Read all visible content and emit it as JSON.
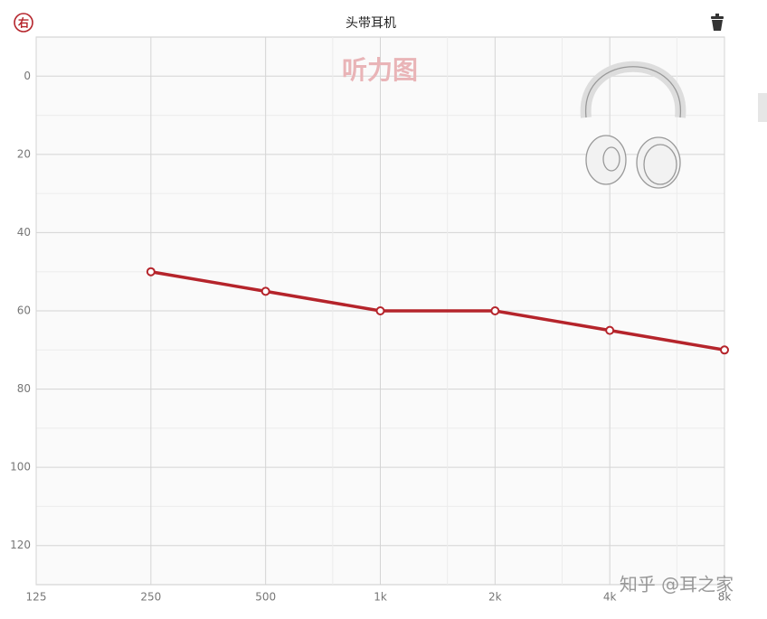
{
  "header": {
    "side_icon": "右",
    "title": "头带耳机"
  },
  "chart_data": {
    "type": "line",
    "title": "听力图",
    "categories": [
      "125",
      "250",
      "500",
      "1k",
      "2k",
      "4k",
      "8k"
    ],
    "series": [
      {
        "name": "右",
        "color": "#b5242b",
        "values": [
          null,
          50,
          55,
          60,
          60,
          65,
          70
        ]
      }
    ],
    "ylim": [
      -10,
      130
    ],
    "yticks": [
      0,
      20,
      40,
      60,
      80,
      100,
      120
    ],
    "y_inverted": true,
    "grid": true
  },
  "watermark": "知乎 @耳之家"
}
